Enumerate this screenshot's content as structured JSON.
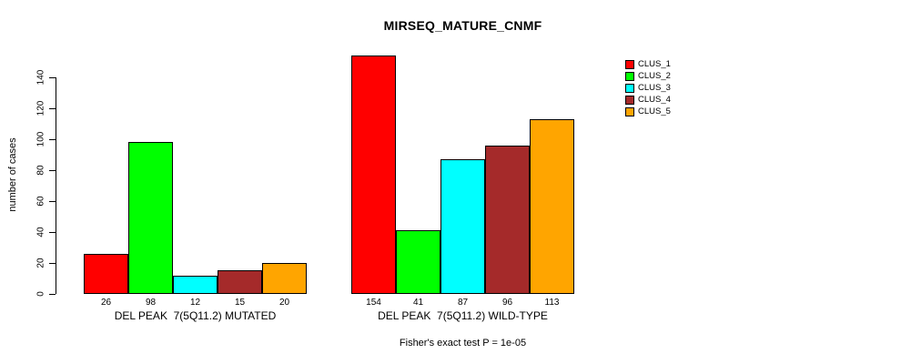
{
  "title": "MIRSEQ_MATURE_CNMF",
  "chart_data": {
    "type": "bar",
    "title": "MIRSEQ_MATURE_CNMF",
    "ylabel": "number of cases",
    "xlabel": "",
    "footnote": "Fisher's exact test P = 1e-05",
    "grid": false,
    "legend_position": "top-right",
    "y_ticks": [
      0,
      20,
      40,
      60,
      80,
      100,
      120,
      140
    ],
    "ylim": [
      0,
      157
    ],
    "series": [
      {
        "name": "CLUS_1",
        "color": "#FF0000"
      },
      {
        "name": "CLUS_2",
        "color": "#00FF00"
      },
      {
        "name": "CLUS_3",
        "color": "#00FFFF"
      },
      {
        "name": "CLUS_4",
        "color": "#A52A2A"
      },
      {
        "name": "CLUS_5",
        "color": "#FFA500"
      }
    ],
    "groups": [
      {
        "label": "DEL PEAK  7(5Q11.2) MUTATED",
        "values": [
          26,
          98,
          12,
          15,
          20
        ]
      },
      {
        "label": "DEL PEAK  7(5Q11.2) WILD-TYPE",
        "values": [
          154,
          41,
          87,
          96,
          113
        ]
      }
    ],
    "bar_border_color": "#000000",
    "background_color": "#FFFFFF"
  }
}
